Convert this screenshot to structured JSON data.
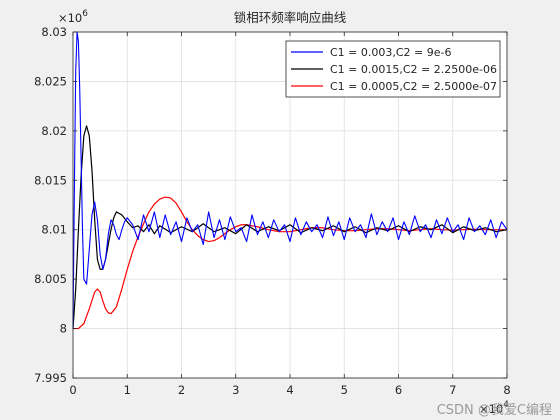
{
  "chart_data": {
    "type": "line",
    "title": "锁相环频率响应曲线",
    "xlabel": "",
    "ylabel": "",
    "xlim": [
      0,
      80000
    ],
    "ylim": [
      7995000,
      8030000
    ],
    "x_exponent_label": "×10",
    "x_exponent_power": "4",
    "y_exponent_label": "×10",
    "y_exponent_power": "6",
    "x_ticks": [
      0,
      10000,
      20000,
      30000,
      40000,
      50000,
      60000,
      70000,
      80000
    ],
    "x_tick_labels": [
      "0",
      "1",
      "2",
      "3",
      "4",
      "5",
      "6",
      "7",
      "8"
    ],
    "y_ticks": [
      7995000,
      8000000,
      8005000,
      8010000,
      8015000,
      8020000,
      8025000,
      8030000
    ],
    "y_tick_labels": [
      "7.995",
      "8",
      "8.005",
      "8.01",
      "8.015",
      "8.02",
      "8.025",
      "8.03"
    ],
    "grid": true,
    "legend_position": "top-right",
    "series": [
      {
        "name": "C1 = 0.003,C2 = 9e-6",
        "color": "#0000ff",
        "x": [
          0,
          250,
          500,
          750,
          1000,
          1250,
          1500,
          1750,
          2000,
          2500,
          3000,
          3500,
          4000,
          4500,
          5000,
          5500,
          6000,
          6500,
          7000,
          7500,
          8000,
          8500,
          9000,
          9500,
          10000,
          11000,
          12000,
          13000,
          14000,
          15000,
          16000,
          17000,
          18000,
          19000,
          20000,
          21000,
          22000,
          23000,
          24000,
          25000,
          26000,
          27000,
          28000,
          29000,
          30000,
          31000,
          32000,
          33000,
          34000,
          35000,
          36000,
          37000,
          38000,
          39000,
          40000,
          41000,
          42000,
          43000,
          44000,
          45000,
          46000,
          47000,
          48000,
          49000,
          50000,
          51000,
          52000,
          53000,
          54000,
          55000,
          56000,
          57000,
          58000,
          59000,
          60000,
          61000,
          62000,
          63000,
          64000,
          65000,
          66000,
          67000,
          68000,
          69000,
          70000,
          71000,
          72000,
          73000,
          74000,
          75000,
          76000,
          77000,
          78000,
          79000,
          80000
        ],
        "y": [
          8000000,
          8014000,
          8026000,
          8030000,
          8029000,
          8024000,
          8017000,
          8010000,
          8005000,
          8004500,
          8008000,
          8011500,
          8012800,
          8011000,
          8007500,
          8006000,
          8007000,
          8009500,
          8011000,
          8010500,
          8009500,
          8009000,
          8010000,
          8010800,
          8011200,
          8010500,
          8009000,
          8011500,
          8009800,
          8011800,
          8009200,
          8011500,
          8009500,
          8010800,
          8008800,
          8011200,
          8009800,
          8010500,
          8008500,
          8011800,
          8009200,
          8011000,
          8009000,
          8011300,
          8009800,
          8010200,
          8008800,
          8011500,
          8009500,
          8010800,
          8009200,
          8011000,
          8009800,
          8010500,
          8008800,
          8011200,
          8009500,
          8010800,
          8009800,
          8010500,
          8009200,
          8011300,
          8009400,
          8010800,
          8009000,
          8011200,
          8009800,
          8010500,
          8009200,
          8011600,
          8009500,
          8010800,
          8009800,
          8011200,
          8009000,
          8010800,
          8009500,
          8011400,
          8009800,
          8010500,
          8009200,
          8011000,
          8009600,
          8011200,
          8009800,
          8010500,
          8009000,
          8011200,
          8009800,
          8010400,
          8009500,
          8011000,
          8009200,
          8010800,
          8010000
        ]
      },
      {
        "name": "C1 = 0.0015,C2 = 2.2500e-06",
        "color": "#000000",
        "x": [
          0,
          500,
          1000,
          1500,
          2000,
          2500,
          3000,
          3500,
          4000,
          4500,
          5000,
          5500,
          6000,
          6500,
          7000,
          7500,
          8000,
          9000,
          10000,
          11000,
          12000,
          13000,
          14000,
          15000,
          16000,
          18000,
          20000,
          22000,
          24000,
          26000,
          28000,
          30000,
          32000,
          34000,
          36000,
          38000,
          40000,
          42000,
          44000,
          46000,
          48000,
          50000,
          52000,
          54000,
          56000,
          58000,
          60000,
          62000,
          64000,
          66000,
          68000,
          70000,
          72000,
          74000,
          76000,
          78000,
          80000
        ],
        "y": [
          8000000,
          8004000,
          8010000,
          8015500,
          8019500,
          8020500,
          8019500,
          8016000,
          8011000,
          8007000,
          8006000,
          8006000,
          8007000,
          8008500,
          8010000,
          8011200,
          8011800,
          8011500,
          8010800,
          8010200,
          8010400,
          8009800,
          8010500,
          8009600,
          8010400,
          8009700,
          8010300,
          8009800,
          8010600,
          8009800,
          8010200,
          8009600,
          8010500,
          8009800,
          8010300,
          8009900,
          8010500,
          8009700,
          8010200,
          8009900,
          8010400,
          8009800,
          8010300,
          8009700,
          8010200,
          8009900,
          8010400,
          8009800,
          8010300,
          8010000,
          8010500,
          8009700,
          8010300,
          8009900,
          8010200,
          8009800,
          8010000
        ]
      },
      {
        "name": "C1 = 0.0005,C2 = 2.5000e-07",
        "color": "#ff0000",
        "x": [
          0,
          1000,
          2000,
          3000,
          4000,
          4500,
          5000,
          5500,
          6000,
          6500,
          7000,
          8000,
          9000,
          10000,
          11000,
          12000,
          13000,
          14000,
          15000,
          16000,
          17000,
          18000,
          19000,
          20000,
          21000,
          22000,
          23000,
          24000,
          25000,
          26000,
          27000,
          28000,
          29000,
          30000,
          31000,
          32000,
          34000,
          36000,
          38000,
          40000,
          42000,
          44000,
          46000,
          48000,
          50000,
          52000,
          54000,
          56000,
          58000,
          60000,
          62000,
          64000,
          66000,
          68000,
          70000,
          72000,
          74000,
          76000,
          78000,
          80000
        ],
        "y": [
          8000000,
          8000000,
          8000500,
          8002000,
          8003700,
          8004000,
          8003700,
          8002800,
          8002000,
          8001600,
          8001500,
          8002200,
          8004000,
          8006000,
          8007800,
          8009300,
          8010600,
          8011800,
          8012600,
          8013100,
          8013300,
          8013200,
          8012700,
          8011800,
          8010800,
          8010000,
          8009400,
          8009000,
          8008800,
          8008900,
          8009200,
          8009600,
          8010000,
          8010300,
          8010500,
          8010500,
          8010300,
          8010000,
          8009800,
          8009800,
          8010000,
          8010200,
          8010200,
          8010000,
          8009900,
          8009900,
          8010000,
          8010100,
          8010100,
          8010000,
          8009900,
          8010000,
          8010100,
          8010000,
          8009950,
          8010000,
          8010050,
          8010000,
          8010000,
          8010000
        ]
      }
    ]
  },
  "watermark": "CSDN @我爱C编程"
}
